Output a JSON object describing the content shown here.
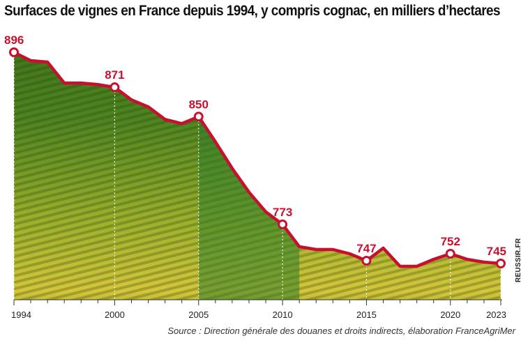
{
  "title": "Surfaces de vignes en France depuis 1994, y compris cognac, en milliers d’hectares",
  "source": "Source : Direction générale des douanes et droits indirects, élaboration FranceAgriMer",
  "credit": "REUSSIR.FR",
  "colors": {
    "line": "#c8102e",
    "vine_dark": "#2f5e14",
    "vine_mid": "#6f9a24",
    "vine_light": "#d7c93a",
    "highlight_band": "#2f7d2a"
  },
  "chart_data": {
    "type": "area",
    "title": "Surfaces de vignes en France depuis 1994, y compris cognac, en milliers d’hectares",
    "xlabel": "",
    "ylabel": "",
    "xlim": [
      1994,
      2023
    ],
    "ylim": [
      700,
      900
    ],
    "x_ticks": [
      1994,
      2000,
      2005,
      2010,
      2015,
      2020,
      2023
    ],
    "grid": false,
    "legend": "none",
    "highlight_band": [
      2005,
      2011
    ],
    "series": [
      {
        "x": [
          1994,
          1995,
          1996,
          1997,
          1998,
          1999,
          2000,
          2001,
          2002,
          2003,
          2004,
          2005,
          2006,
          2007,
          2008,
          2009,
          2010,
          2011,
          2012,
          2013,
          2014,
          2015,
          2016,
          2017,
          2018,
          2019,
          2020,
          2021,
          2022,
          2023
        ],
        "values": [
          896,
          890,
          889,
          874,
          874,
          873,
          871,
          862,
          857,
          848,
          845,
          850,
          832,
          813,
          796,
          782,
          773,
          757,
          755,
          755,
          752,
          747,
          756,
          743,
          743,
          748,
          752,
          748,
          746,
          745
        ]
      }
    ],
    "data_labels": [
      {
        "x": 1994,
        "text": "896"
      },
      {
        "x": 2000,
        "text": "871"
      },
      {
        "x": 2005,
        "text": "850"
      },
      {
        "x": 2010,
        "text": "773"
      },
      {
        "x": 2015,
        "text": "747"
      },
      {
        "x": 2020,
        "text": "752"
      },
      {
        "x": 2023,
        "text": "745"
      }
    ]
  }
}
